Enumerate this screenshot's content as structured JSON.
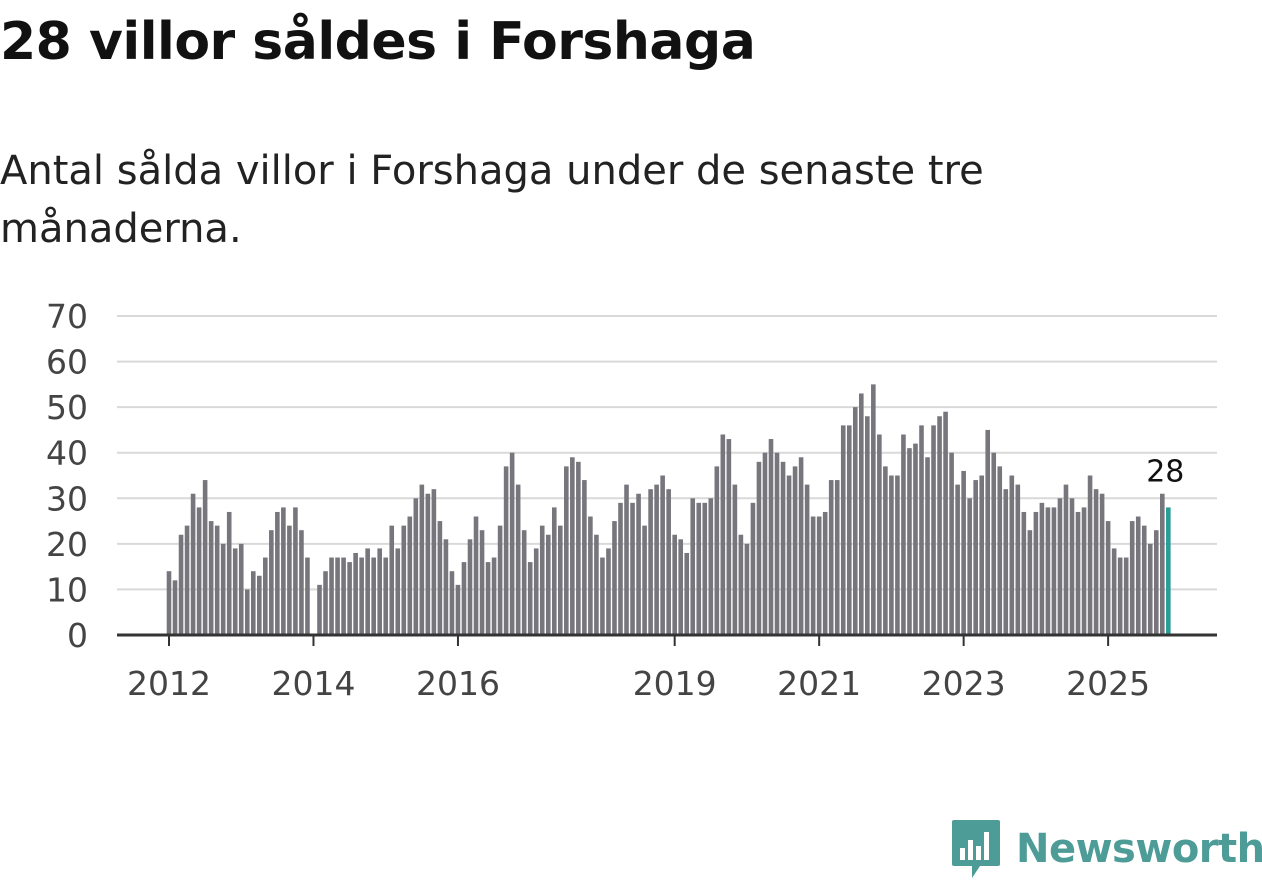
{
  "title": "28 villor såldes i Forshaga",
  "subtitle": "Antal sålda villor i Forshaga under de senaste tre månaderna.",
  "brand": {
    "name": "Newsworthy"
  },
  "colors": {
    "bar": "#77767d",
    "highlight": "#2a9d98",
    "grid": "#d9d9d9",
    "axis": "#333333",
    "brand": "#4d9c97"
  },
  "chart_data": {
    "type": "bar",
    "title": "28 villor såldes i Forshaga",
    "xlabel": "",
    "ylabel": "",
    "ylim": [
      0,
      70
    ],
    "yticks": [
      0,
      10,
      20,
      30,
      40,
      50,
      60,
      70
    ],
    "xticks": [
      "2012",
      "2014",
      "2016",
      "2019",
      "2021",
      "2023",
      "2025"
    ],
    "xtick_positions": [
      0,
      24,
      48,
      84,
      108,
      132,
      156
    ],
    "highlight_label": "28",
    "series": [
      {
        "name": "Antal sålda villor",
        "values": [
          14,
          12,
          22,
          24,
          31,
          28,
          34,
          25,
          24,
          20,
          27,
          19,
          20,
          10,
          14,
          13,
          17,
          23,
          27,
          28,
          24,
          28,
          23,
          17,
          null,
          11,
          14,
          17,
          17,
          17,
          16,
          18,
          17,
          19,
          17,
          19,
          17,
          24,
          19,
          24,
          26,
          30,
          33,
          31,
          32,
          25,
          21,
          14,
          11,
          16,
          21,
          26,
          23,
          16,
          17,
          24,
          37,
          40,
          33,
          23,
          16,
          19,
          24,
          22,
          28,
          24,
          37,
          39,
          38,
          34,
          26,
          22,
          17,
          19,
          25,
          29,
          33,
          29,
          31,
          24,
          32,
          33,
          35,
          32,
          22,
          21,
          18,
          30,
          29,
          29,
          30,
          37,
          44,
          43,
          33,
          22,
          20,
          29,
          38,
          40,
          43,
          40,
          38,
          35,
          37,
          39,
          33,
          26,
          26,
          27,
          34,
          34,
          46,
          46,
          50,
          53,
          48,
          55,
          44,
          37,
          35,
          35,
          44,
          41,
          42,
          46,
          39,
          46,
          48,
          49,
          40,
          33,
          36,
          30,
          34,
          35,
          45,
          40,
          37,
          32,
          35,
          33,
          27,
          23,
          27,
          29,
          28,
          28,
          30,
          33,
          30,
          27,
          28,
          35,
          32,
          31,
          25,
          19,
          17,
          17,
          25,
          26,
          24,
          20,
          23,
          31,
          28
        ]
      }
    ]
  }
}
